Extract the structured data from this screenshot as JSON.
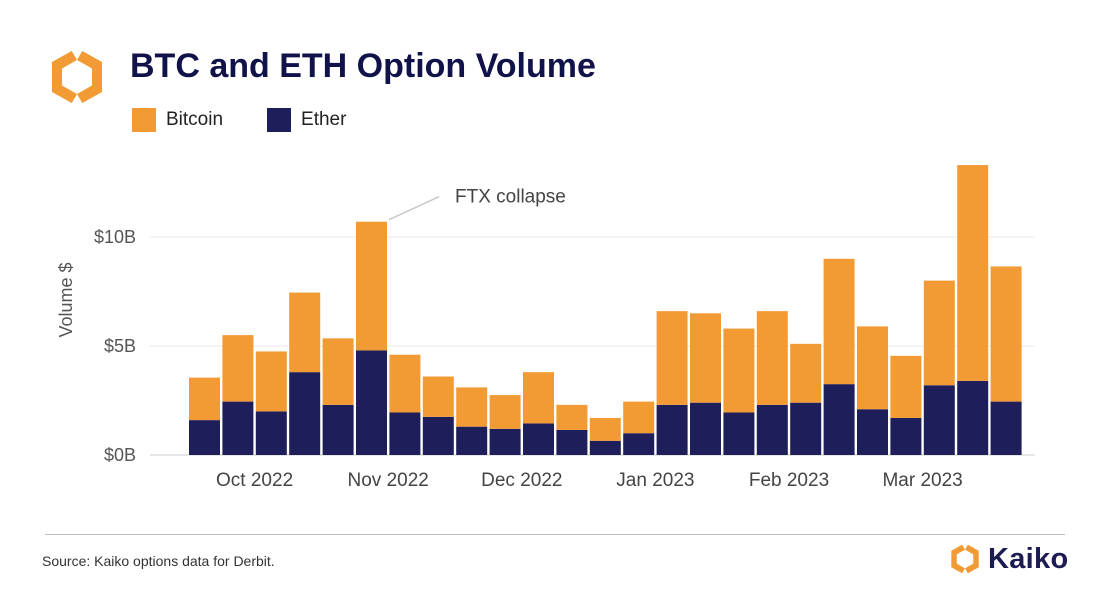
{
  "header": {
    "title": "BTC and ETH Option Volume"
  },
  "colors": {
    "bitcoin": "#f29b34",
    "ether": "#1e1e5a",
    "logo_orange": "#f29b34",
    "title": "#12124a",
    "grid": "#e8e8e8"
  },
  "logo": {
    "icon": "kaiko-logo-icon"
  },
  "footer": {
    "source": "Source: Kaiko options data for Derbit.",
    "brand": "Kaiko"
  },
  "chart_data": {
    "type": "bar",
    "stacked": true,
    "title": "BTC and ETH Option Volume",
    "ylabel": "Volume $",
    "xlabel": "",
    "ylim": [
      0,
      14
    ],
    "y_unit": "billion USD",
    "yticks": [
      0,
      5,
      10
    ],
    "ytick_labels": [
      "$0B",
      "$5B",
      "$10B"
    ],
    "xtick_labels": [
      "Oct 2022",
      "Nov 2022",
      "Dec 2022",
      "Jan 2023",
      "Feb 2023",
      "Mar 2023"
    ],
    "xtick_after_bar": [
      1,
      5,
      9,
      13,
      17,
      21
    ],
    "grid": true,
    "legend_position": "top-left",
    "legend": [
      "Bitcoin",
      "Ether"
    ],
    "series": [
      {
        "name": "Ether",
        "values": [
          1.6,
          2.45,
          2.0,
          3.8,
          2.3,
          4.8,
          1.95,
          1.75,
          1.3,
          1.2,
          1.45,
          1.15,
          0.65,
          1.0,
          2.3,
          2.4,
          1.95,
          2.3,
          2.4,
          3.25,
          2.1,
          1.7,
          3.2,
          3.4,
          2.45
        ]
      },
      {
        "name": "Bitcoin",
        "values": [
          1.95,
          3.05,
          2.75,
          3.65,
          3.05,
          5.9,
          2.65,
          1.85,
          1.8,
          1.55,
          2.35,
          1.15,
          1.05,
          1.45,
          4.3,
          4.1,
          3.85,
          4.3,
          2.7,
          5.75,
          3.8,
          2.85,
          4.8,
          9.9,
          6.2
        ]
      }
    ],
    "annotations": [
      {
        "text": "FTX collapse",
        "bar_index": 5
      }
    ]
  }
}
